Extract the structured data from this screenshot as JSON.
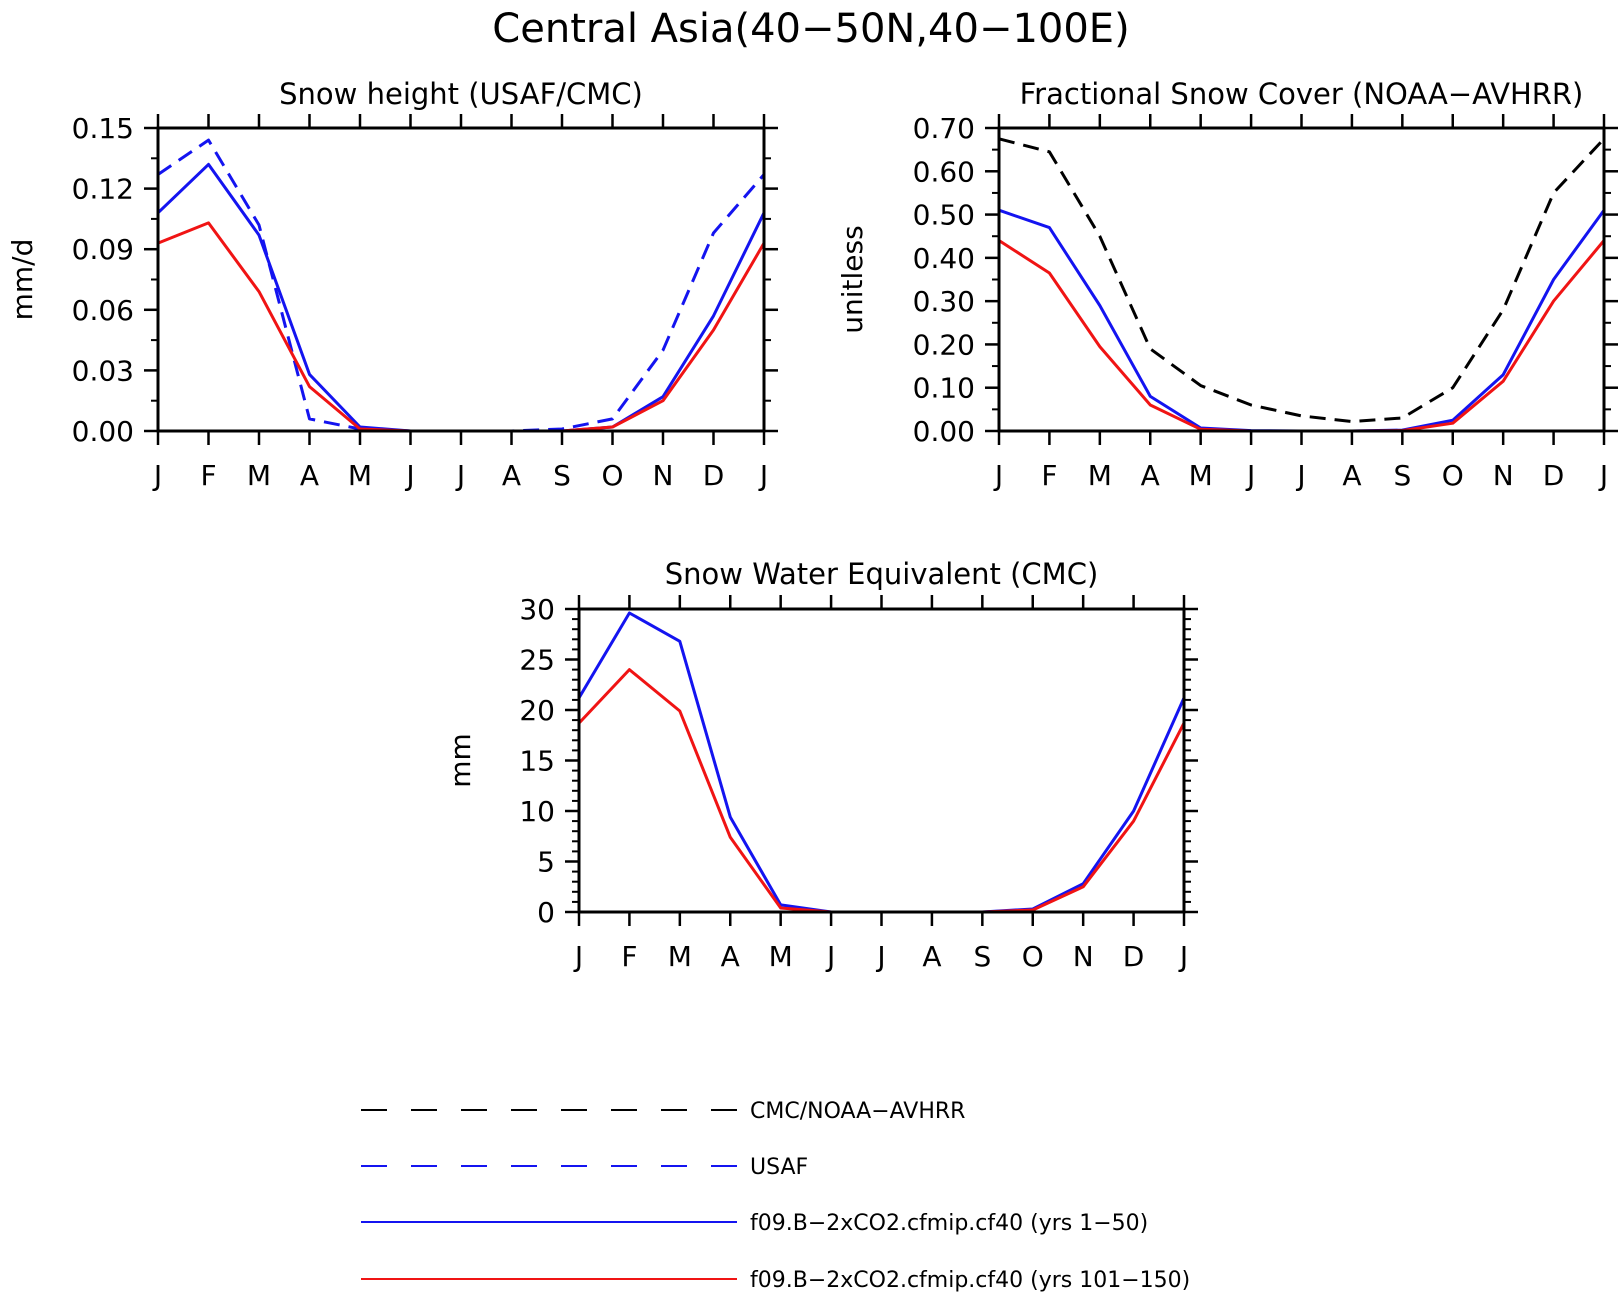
{
  "figure_title": "Central Asia(40−50N,40−100E)",
  "colors": {
    "observed": "#000000",
    "usaf": "#1414f0",
    "exp1": "#1414f0",
    "exp2": "#f01414",
    "axes": "#000000"
  },
  "legend": [
    {
      "label": "CMC/NOAA−AVHRR",
      "color": "#000000",
      "style": "dashed"
    },
    {
      "label": "USAF",
      "color": "#1414f0",
      "style": "dashed"
    },
    {
      "label": "f09.B−2xCO2.cfmip.cf40 (yrs 1−50)",
      "color": "#1414f0",
      "style": "solid"
    },
    {
      "label": "f09.B−2xCO2.cfmip.cf40 (yrs 101−150)",
      "color": "#f01414",
      "style": "solid"
    }
  ],
  "chart_data": [
    {
      "type": "line",
      "title": "Snow height (USAF/CMC)",
      "ylabel": "mm/d",
      "xlabel": "",
      "categories": [
        "J",
        "F",
        "M",
        "A",
        "M",
        "J",
        "J",
        "A",
        "S",
        "O",
        "N",
        "D",
        "J"
      ],
      "ylim": [
        0,
        0.15
      ],
      "yticks": [
        "0.00",
        "0.03",
        "0.06",
        "0.09",
        "0.12",
        "0.15"
      ],
      "series": [
        {
          "name": "USAF",
          "color": "#1414f0",
          "style": "dashed",
          "values": [
            0.127,
            0.144,
            0.102,
            0.006,
            0.001,
            0.0,
            0.0,
            0.0,
            0.001,
            0.006,
            0.04,
            0.098,
            0.127
          ]
        },
        {
          "name": "f09.B−2xCO2.cfmip.cf40 (yrs 1−50)",
          "color": "#1414f0",
          "style": "solid",
          "values": [
            0.108,
            0.132,
            0.097,
            0.028,
            0.002,
            0.0,
            0.0,
            0.0,
            0.0,
            0.002,
            0.017,
            0.057,
            0.108
          ]
        },
        {
          "name": "f09.B−2xCO2.cfmip.cf40 (yrs 101−150)",
          "color": "#f01414",
          "style": "solid",
          "values": [
            0.093,
            0.103,
            0.069,
            0.022,
            0.001,
            0.0,
            0.0,
            0.0,
            0.0,
            0.002,
            0.015,
            0.05,
            0.093
          ]
        }
      ]
    },
    {
      "type": "line",
      "title": "Fractional Snow Cover (NOAA−AVHRR)",
      "ylabel": "unitless",
      "xlabel": "",
      "categories": [
        "J",
        "F",
        "M",
        "A",
        "M",
        "J",
        "J",
        "A",
        "S",
        "O",
        "N",
        "D",
        "J"
      ],
      "ylim": [
        0,
        0.7
      ],
      "yticks": [
        "0.00",
        "0.10",
        "0.20",
        "0.30",
        "0.40",
        "0.50",
        "0.60",
        "0.70"
      ],
      "series": [
        {
          "name": "CMC/NOAA−AVHRR",
          "color": "#000000",
          "style": "dashed",
          "values": [
            0.675,
            0.645,
            0.45,
            0.19,
            0.105,
            0.06,
            0.035,
            0.022,
            0.03,
            0.1,
            0.28,
            0.55,
            0.675
          ]
        },
        {
          "name": "f09.B−2xCO2.cfmip.cf40 (yrs 1−50)",
          "color": "#1414f0",
          "style": "solid",
          "values": [
            0.51,
            0.47,
            0.29,
            0.08,
            0.007,
            0.001,
            0.0,
            0.0,
            0.002,
            0.025,
            0.13,
            0.35,
            0.51
          ]
        },
        {
          "name": "f09.B−2xCO2.cfmip.cf40 (yrs 101−150)",
          "color": "#f01414",
          "style": "solid",
          "values": [
            0.44,
            0.365,
            0.195,
            0.06,
            0.004,
            0.0,
            0.0,
            0.0,
            0.001,
            0.018,
            0.115,
            0.3,
            0.44
          ]
        }
      ]
    },
    {
      "type": "line",
      "title": "Snow Water Equivalent (CMC)",
      "ylabel": "mm",
      "xlabel": "",
      "categories": [
        "J",
        "F",
        "M",
        "A",
        "M",
        "J",
        "J",
        "A",
        "S",
        "O",
        "N",
        "D",
        "J"
      ],
      "ylim": [
        0,
        30
      ],
      "yticks": [
        "0",
        "5",
        "10",
        "15",
        "20",
        "25",
        "30"
      ],
      "series": [
        {
          "name": "f09.B−2xCO2.cfmip.cf40 (yrs 1−50)",
          "color": "#1414f0",
          "style": "solid",
          "values": [
            21.2,
            29.6,
            26.8,
            9.4,
            0.7,
            0.0,
            0.0,
            0.0,
            0.0,
            0.3,
            2.8,
            10.0,
            21.2
          ]
        },
        {
          "name": "f09.B−2xCO2.cfmip.cf40 (yrs 101−150)",
          "color": "#f01414",
          "style": "solid",
          "values": [
            18.7,
            24.0,
            19.9,
            7.4,
            0.4,
            0.0,
            0.0,
            0.0,
            0.0,
            0.2,
            2.5,
            9.0,
            18.7
          ]
        }
      ]
    }
  ]
}
